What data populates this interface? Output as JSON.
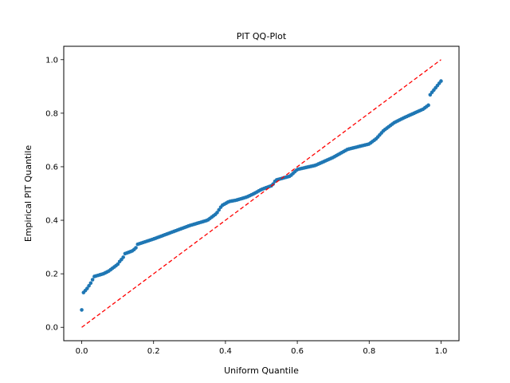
{
  "chart_data": {
    "type": "scatter",
    "title": "PIT QQ-Plot",
    "xlabel": "Uniform Quantile",
    "ylabel": "Empirical PIT Quantile",
    "xlim": [
      -0.05,
      1.05
    ],
    "ylim": [
      -0.05,
      1.05
    ],
    "xticks": [
      0.0,
      0.2,
      0.4,
      0.6,
      0.8,
      1.0
    ],
    "yticks": [
      0.0,
      0.2,
      0.4,
      0.6,
      0.8,
      1.0
    ],
    "xtick_labels": [
      "0.0",
      "0.2",
      "0.4",
      "0.6",
      "0.8",
      "1.0"
    ],
    "ytick_labels": [
      "0.0",
      "0.2",
      "0.4",
      "0.6",
      "0.8",
      "1.0"
    ],
    "grid": false,
    "point_color": "#1f77b4",
    "reference_line": {
      "x": [
        0,
        1
      ],
      "y": [
        0,
        1
      ],
      "color": "#ff0000",
      "style": "dashed"
    },
    "anchors": [
      [
        0.0,
        0.065
      ],
      [
        0.005,
        0.13
      ],
      [
        0.015,
        0.145
      ],
      [
        0.025,
        0.165
      ],
      [
        0.035,
        0.19
      ],
      [
        0.06,
        0.2
      ],
      [
        0.075,
        0.21
      ],
      [
        0.09,
        0.225
      ],
      [
        0.1,
        0.235
      ],
      [
        0.105,
        0.245
      ],
      [
        0.115,
        0.26
      ],
      [
        0.12,
        0.275
      ],
      [
        0.14,
        0.285
      ],
      [
        0.15,
        0.295
      ],
      [
        0.155,
        0.31
      ],
      [
        0.2,
        0.33
      ],
      [
        0.25,
        0.355
      ],
      [
        0.3,
        0.38
      ],
      [
        0.35,
        0.4
      ],
      [
        0.375,
        0.425
      ],
      [
        0.39,
        0.455
      ],
      [
        0.41,
        0.47
      ],
      [
        0.43,
        0.475
      ],
      [
        0.46,
        0.487
      ],
      [
        0.48,
        0.5
      ],
      [
        0.5,
        0.515
      ],
      [
        0.53,
        0.53
      ],
      [
        0.54,
        0.55
      ],
      [
        0.58,
        0.565
      ],
      [
        0.6,
        0.59
      ],
      [
        0.65,
        0.605
      ],
      [
        0.7,
        0.635
      ],
      [
        0.74,
        0.665
      ],
      [
        0.8,
        0.685
      ],
      [
        0.82,
        0.705
      ],
      [
        0.84,
        0.735
      ],
      [
        0.87,
        0.765
      ],
      [
        0.9,
        0.785
      ],
      [
        0.95,
        0.815
      ],
      [
        0.965,
        0.83
      ],
      [
        0.97,
        0.87
      ],
      [
        0.985,
        0.895
      ],
      [
        1.0,
        0.92
      ]
    ],
    "n_points": 200
  }
}
